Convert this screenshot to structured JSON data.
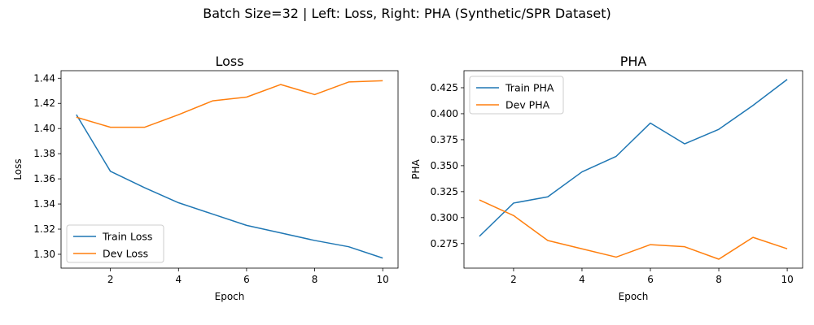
{
  "suptitle": "Batch Size=32 | Left: Loss, Right: PHA (Synthetic/SPR Dataset)",
  "chart_data": [
    {
      "type": "line",
      "title": "Loss",
      "xlabel": "Epoch",
      "ylabel": "Loss",
      "x": [
        1,
        2,
        3,
        4,
        5,
        6,
        7,
        8,
        9,
        10
      ],
      "xlim": [
        0.55,
        10.45
      ],
      "ylim": [
        1.289,
        1.446
      ],
      "xticks": [
        2,
        4,
        6,
        8,
        10
      ],
      "yticks": [
        1.3,
        1.32,
        1.34,
        1.36,
        1.38,
        1.4,
        1.42,
        1.44
      ],
      "ytick_labels": [
        "1.30",
        "1.32",
        "1.34",
        "1.36",
        "1.38",
        "1.40",
        "1.42",
        "1.44"
      ],
      "legend": "lower-left",
      "grid": false,
      "series": [
        {
          "name": "Train Loss",
          "color": "#1f77b4",
          "values": [
            1.411,
            1.366,
            1.353,
            1.341,
            1.332,
            1.323,
            1.317,
            1.311,
            1.306,
            1.297
          ]
        },
        {
          "name": "Dev Loss",
          "color": "#ff7f0e",
          "values": [
            1.409,
            1.401,
            1.401,
            1.411,
            1.422,
            1.425,
            1.435,
            1.427,
            1.437,
            1.438
          ]
        }
      ]
    },
    {
      "type": "line",
      "title": "PHA",
      "xlabel": "Epoch",
      "ylabel": "PHA",
      "x": [
        1,
        2,
        3,
        4,
        5,
        6,
        7,
        8,
        9,
        10
      ],
      "xlim": [
        0.55,
        10.45
      ],
      "ylim": [
        0.2514,
        0.4414
      ],
      "xticks": [
        2,
        4,
        6,
        8,
        10
      ],
      "yticks": [
        0.275,
        0.3,
        0.325,
        0.35,
        0.375,
        0.4,
        0.425
      ],
      "ytick_labels": [
        "0.275",
        "0.300",
        "0.325",
        "0.350",
        "0.375",
        "0.400",
        "0.425"
      ],
      "legend": "upper-left",
      "grid": false,
      "series": [
        {
          "name": "Train PHA",
          "color": "#1f77b4",
          "values": [
            0.282,
            0.314,
            0.32,
            0.344,
            0.359,
            0.391,
            0.371,
            0.385,
            0.408,
            0.433
          ]
        },
        {
          "name": "Dev PHA",
          "color": "#ff7f0e",
          "values": [
            0.317,
            0.302,
            0.278,
            0.27,
            0.262,
            0.274,
            0.272,
            0.26,
            0.281,
            0.27
          ]
        }
      ]
    }
  ]
}
